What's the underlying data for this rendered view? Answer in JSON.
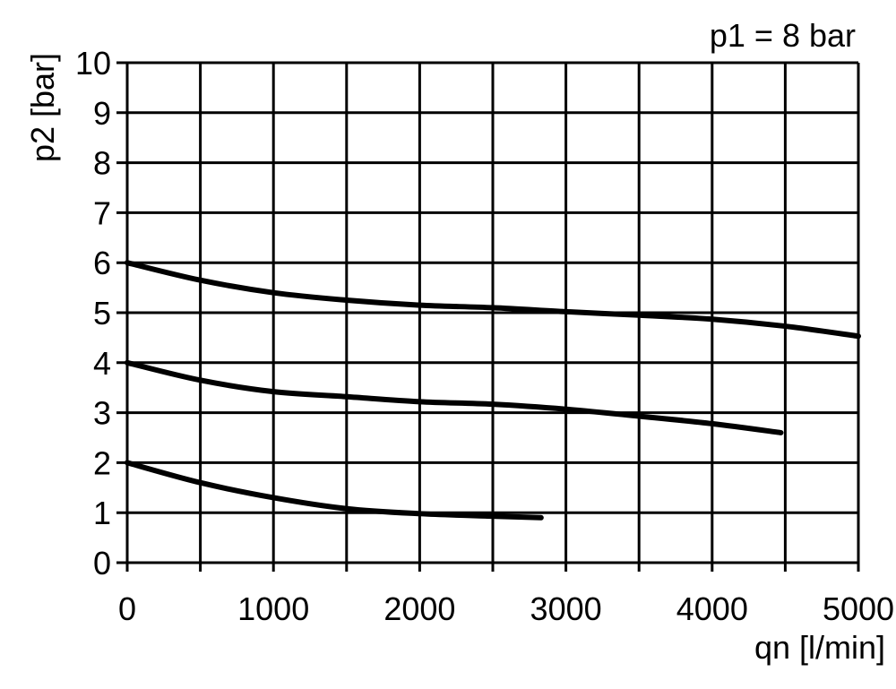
{
  "chart_data": {
    "type": "line",
    "title": "",
    "annotation": "p1 = 8 bar",
    "xlabel": "qn [l/min]",
    "ylabel": "p2 [bar]",
    "xlim": [
      0,
      5000
    ],
    "ylim": [
      0,
      10
    ],
    "x_ticks": [
      0,
      1000,
      2000,
      3000,
      4000,
      5000
    ],
    "x_grid_step": 500,
    "y_ticks": [
      0,
      1,
      2,
      3,
      4,
      5,
      6,
      7,
      8,
      9,
      10
    ],
    "grid": true,
    "colors": {
      "line": "#000000",
      "grid": "#000000"
    },
    "series": [
      {
        "x": [
          0,
          500,
          1000,
          1500,
          2000,
          2500,
          3000,
          3500,
          4000,
          4500,
          5000
        ],
        "y": [
          6.0,
          5.65,
          5.4,
          5.25,
          5.15,
          5.1,
          5.02,
          4.95,
          4.87,
          4.73,
          4.53
        ]
      },
      {
        "x": [
          0,
          500,
          1000,
          1500,
          2000,
          2500,
          3000,
          3500,
          4000,
          4470
        ],
        "y": [
          4.0,
          3.65,
          3.42,
          3.32,
          3.22,
          3.17,
          3.07,
          2.93,
          2.78,
          2.6
        ]
      },
      {
        "x": [
          0,
          500,
          1000,
          1500,
          2000,
          2500,
          2830
        ],
        "y": [
          2.0,
          1.6,
          1.3,
          1.08,
          0.98,
          0.93,
          0.9
        ]
      }
    ]
  }
}
